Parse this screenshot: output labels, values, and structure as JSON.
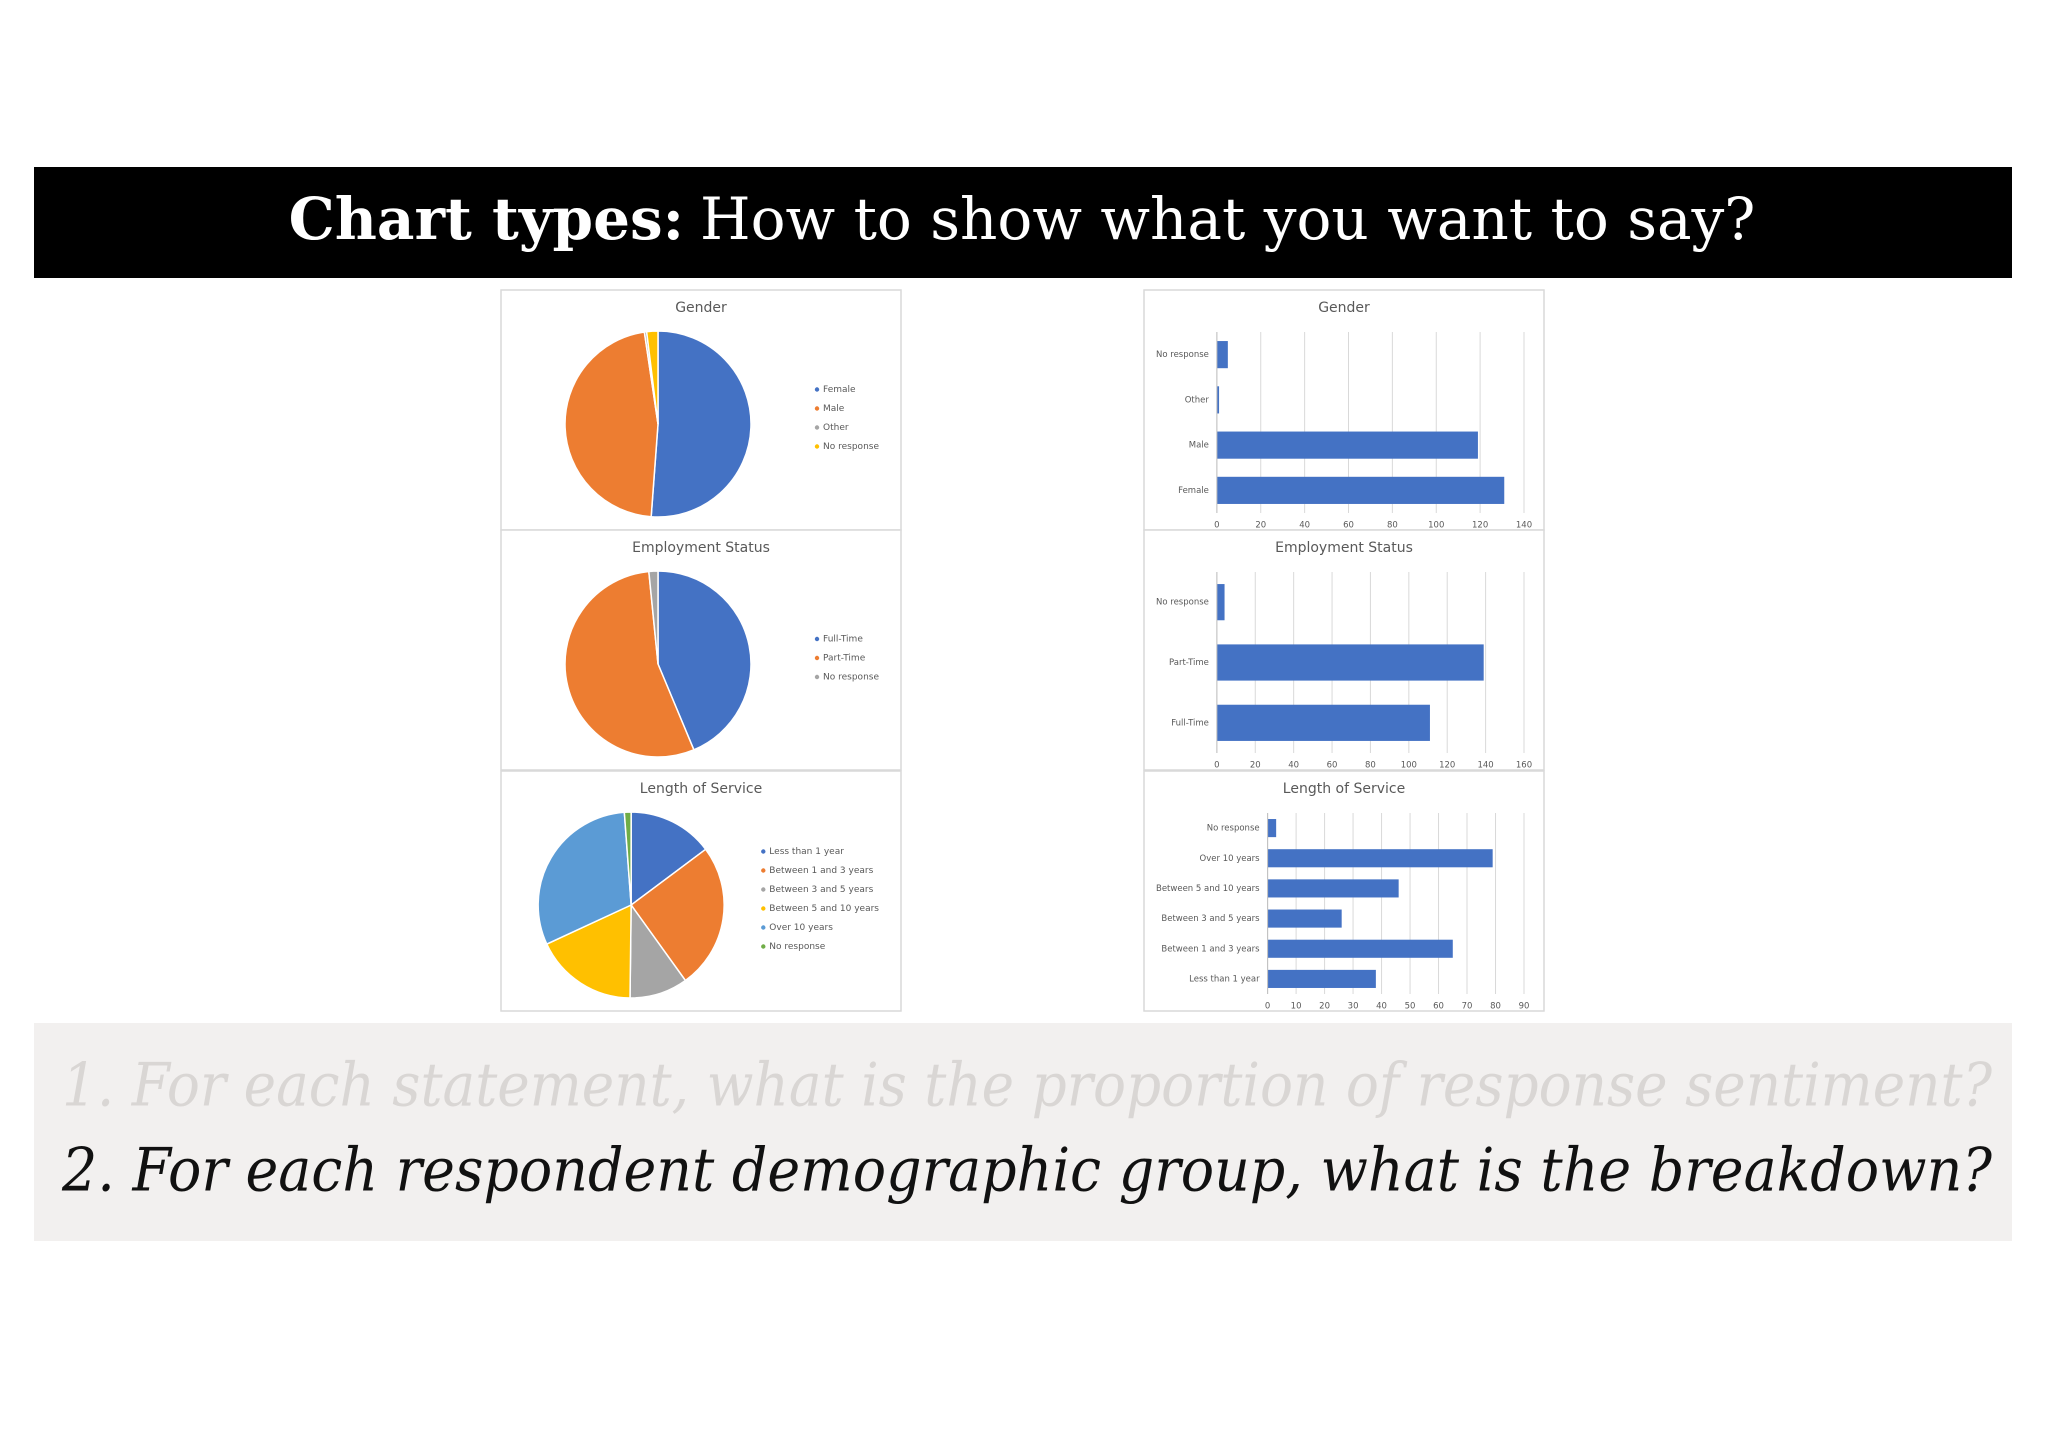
{
  "header": {
    "bold": "Chart types:",
    "rest": "How to show what you want to say?"
  },
  "chart_data": [
    {
      "type": "pie",
      "title": "Gender",
      "categories": [
        "Female",
        "Male",
        "Other",
        "No response"
      ],
      "values": [
        131,
        119,
        1,
        5
      ],
      "colors": [
        "#4472c4",
        "#ed7d31",
        "#a5a5a5",
        "#ffc000"
      ],
      "legend": "right"
    },
    {
      "type": "bar",
      "title": "Gender",
      "categories": [
        "Female",
        "Male",
        "Other",
        "No response"
      ],
      "values": [
        131,
        119,
        1,
        5
      ],
      "color": "#4472c4",
      "xlim": [
        0,
        140
      ],
      "xticks": [
        0,
        20,
        40,
        60,
        80,
        100,
        120,
        140
      ],
      "grid": true
    },
    {
      "type": "pie",
      "title": "Employment Status",
      "categories": [
        "Full-Time",
        "Part-Time",
        "No response"
      ],
      "values": [
        111,
        139,
        4
      ],
      "colors": [
        "#4472c4",
        "#ed7d31",
        "#a5a5a5"
      ],
      "legend": "right"
    },
    {
      "type": "bar",
      "title": "Employment Status",
      "categories": [
        "Full-Time",
        "Part-Time",
        "No response"
      ],
      "values": [
        111,
        139,
        4
      ],
      "color": "#4472c4",
      "xlim": [
        0,
        160
      ],
      "xticks": [
        0,
        20,
        40,
        60,
        80,
        100,
        120,
        140,
        160
      ],
      "grid": true
    },
    {
      "type": "pie",
      "title": "Length of Service",
      "categories": [
        "Less than 1 year",
        "Between 1 and 3 years",
        "Between 3 and 5 years",
        "Between 5 and 10 years",
        "Over 10 years",
        "No response"
      ],
      "values": [
        38,
        65,
        26,
        46,
        79,
        3
      ],
      "colors": [
        "#4472c4",
        "#ed7d31",
        "#a5a5a5",
        "#ffc000",
        "#5b9bd5",
        "#70ad47"
      ],
      "legend": "right"
    },
    {
      "type": "bar",
      "title": "Length of Service",
      "categories": [
        "Less than 1 year",
        "Between 1 and 3 years",
        "Between 3 and 5 years",
        "Between 5 and 10 years",
        "Over 10 years",
        "No response"
      ],
      "values": [
        38,
        65,
        26,
        46,
        79,
        3
      ],
      "color": "#4472c4",
      "xlim": [
        0,
        90
      ],
      "xticks": [
        0,
        10,
        20,
        30,
        40,
        50,
        60,
        70,
        80,
        90
      ],
      "grid": true
    }
  ],
  "questions": [
    "1. For each statement, what is the proportion of response sentiment?",
    "2. For each respondent demographic group, what is the breakdown?"
  ]
}
